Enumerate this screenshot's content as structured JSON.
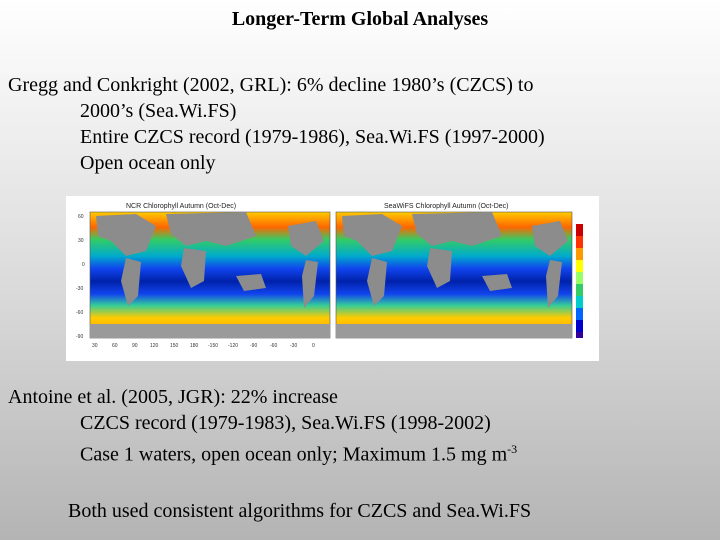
{
  "slide": {
    "title": "Longer-Term Global Analyses",
    "gregg": {
      "line1": "Gregg and Conkright (2002, GRL): 6% decline 1980’s (CZCS) to",
      "line2": "2000’s (Sea.Wi.FS)",
      "line3": "Entire CZCS record (1979-1986), Sea.Wi.FS (1997-2000)",
      "line4": "Open ocean only"
    },
    "antoine": {
      "line1": "Antoine et al. (2005, JGR): 22% increase",
      "line2": "CZCS record (1979-1983), Sea.Wi.FS (1998-2002)",
      "line3_prefix": "Case 1 waters, open ocean only; Maximum 1.5 mg m",
      "line3_exp": "-3"
    },
    "footer": "Both used consistent algorithms for CZCS and Sea.Wi.FS"
  },
  "figure": {
    "left_map_title": "NCR Chlorophyll Autumn (Oct-Dec)",
    "right_map_title": "SeaWiFS Chlorophyll Autumn (Oct-Dec)",
    "lat_ticks": [
      "60",
      "30",
      "0",
      "-30",
      "-60",
      "-90"
    ],
    "lon_ticks": [
      "30",
      "60",
      "90",
      "120",
      "150",
      "180",
      "-150",
      "-120",
      "-90",
      "-60",
      "-30",
      "0"
    ],
    "colorbar_colors": [
      "#cc0000",
      "#ff3300",
      "#ff9900",
      "#ffff00",
      "#99ff66",
      "#33cc66",
      "#00cccc",
      "#0066ff",
      "#0000cc",
      "#330099"
    ],
    "land_color": "#8c8c8c"
  }
}
